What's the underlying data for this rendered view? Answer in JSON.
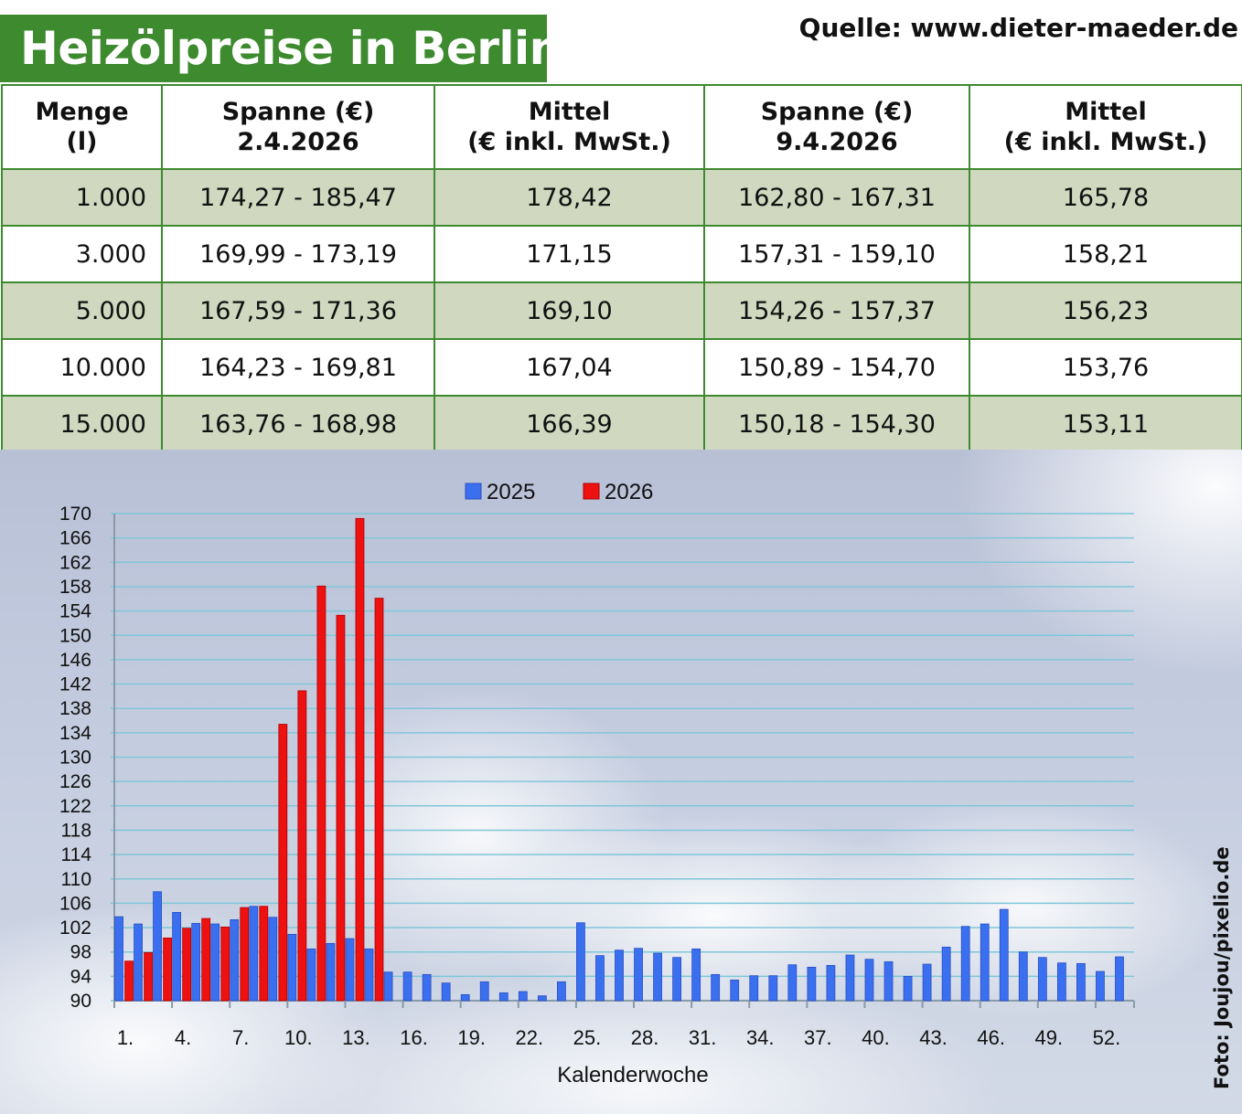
{
  "title": "Heizölpreise in Berlin",
  "source": "Quelle: www.dieter-maeder.de",
  "photo_credit": "Foto: Joujou/pixelio.de",
  "colors": {
    "header_green": "#3d8a2f",
    "row_shade": "#d0d9c0",
    "series_2025": "#3a6ff0",
    "series_2026": "#ee1111"
  },
  "table": {
    "headers": [
      {
        "line1": "Menge",
        "line2": "(l)"
      },
      {
        "line1": "Spanne (€)",
        "line2": "2.4.2026"
      },
      {
        "line1": "Mittel",
        "line2": "(€ inkl. MwSt.)"
      },
      {
        "line1": "Spanne (€)",
        "line2": "9.4.2026"
      },
      {
        "line1": "Mittel",
        "line2": "(€ inkl. MwSt.)"
      }
    ],
    "rows": [
      [
        "1.000",
        "174,27 - 185,47",
        "178,42",
        "162,80 - 167,31",
        "165,78"
      ],
      [
        "3.000",
        "169,99 - 173,19",
        "171,15",
        "157,31 - 159,10",
        "158,21"
      ],
      [
        "5.000",
        "167,59 - 171,36",
        "169,10",
        "154,26 - 157,37",
        "156,23"
      ],
      [
        "10.000",
        "164,23 - 169,81",
        "167,04",
        "150,89 - 154,70",
        "153,76"
      ],
      [
        "15.000",
        "163,76 - 168,98",
        "166,39",
        "150,18 - 154,30",
        "153,11"
      ]
    ]
  },
  "chart_data": {
    "type": "bar",
    "xlabel": "Kalenderwoche",
    "ylabel": "",
    "ylim": [
      90,
      170
    ],
    "yticks": [
      90,
      94,
      98,
      102,
      106,
      110,
      114,
      118,
      122,
      126,
      130,
      134,
      138,
      142,
      146,
      150,
      154,
      158,
      162,
      166,
      170
    ],
    "xtick_labels": [
      "1.",
      "4.",
      "7.",
      "10.",
      "13.",
      "16.",
      "19.",
      "22.",
      "25.",
      "28.",
      "31.",
      "34.",
      "37.",
      "40.",
      "43.",
      "46.",
      "49.",
      "52."
    ],
    "xtick_weeks": [
      1,
      4,
      7,
      10,
      13,
      16,
      19,
      22,
      25,
      28,
      31,
      34,
      37,
      40,
      43,
      46,
      49,
      52
    ],
    "x": [
      1,
      2,
      3,
      4,
      5,
      6,
      7,
      8,
      9,
      10,
      11,
      12,
      13,
      14,
      15,
      16,
      17,
      18,
      19,
      20,
      21,
      22,
      23,
      24,
      25,
      26,
      27,
      28,
      29,
      30,
      31,
      32,
      33,
      34,
      35,
      36,
      37,
      38,
      39,
      40,
      41,
      42,
      43,
      44,
      45,
      46,
      47,
      48,
      49,
      50,
      51,
      52,
      53
    ],
    "grid": true,
    "legend_position": "top-center",
    "series": [
      {
        "name": "2025",
        "color": "#3a6ff0",
        "values": [
          103.8,
          102.6,
          107.9,
          104.5,
          102.7,
          102.6,
          103.3,
          105.5,
          103.7,
          100.9,
          98.5,
          99.4,
          100.2,
          98.5,
          94.7,
          94.7,
          94.3,
          92.9,
          91.0,
          93.1,
          91.3,
          91.5,
          90.8,
          93.1,
          102.8,
          97.4,
          98.3,
          98.6,
          97.8,
          97.1,
          98.5,
          94.3,
          93.4,
          94.1,
          94.1,
          95.9,
          95.5,
          95.8,
          97.5,
          96.8,
          96.4,
          94.0,
          96.0,
          98.8,
          102.2,
          102.6,
          105.0,
          98.0,
          97.1,
          96.2,
          96.1,
          94.8,
          97.2
        ]
      },
      {
        "name": "2026",
        "color": "#ee1111",
        "values": [
          96.5,
          97.9,
          100.3,
          101.9,
          103.5,
          102.1,
          105.3,
          105.5,
          135.4,
          140.9,
          158.1,
          153.3,
          169.2,
          156.1,
          null,
          null,
          null,
          null,
          null,
          null,
          null,
          null,
          null,
          null,
          null,
          null,
          null,
          null,
          null,
          null,
          null,
          null,
          null,
          null,
          null,
          null,
          null,
          null,
          null,
          null,
          null,
          null,
          null,
          null,
          null,
          null,
          null,
          null,
          null,
          null,
          null,
          null,
          null
        ]
      }
    ]
  }
}
